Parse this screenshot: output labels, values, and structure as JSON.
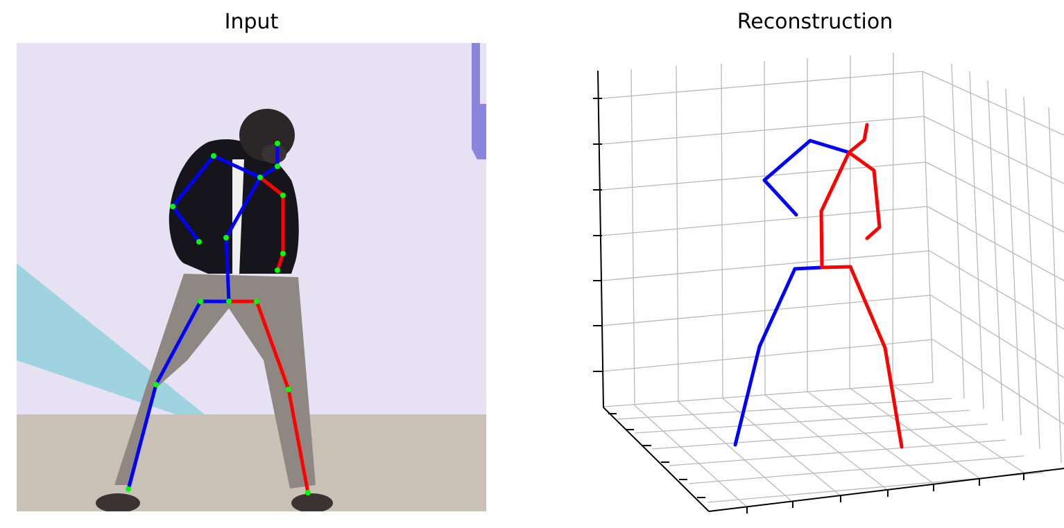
{
  "panels": {
    "input": {
      "title": "Input"
    },
    "reconstruction": {
      "title": "Reconstruction"
    }
  },
  "colors": {
    "left_limb": "#0000ff",
    "right_limb": "#ff0000",
    "keypoint": "#00ff00",
    "grid": "#b8b8b8",
    "background_wall": "#e6e2f4",
    "floor": "#c9c0b6",
    "shirt": "#15151b",
    "pants": "#8f8781"
  },
  "icons": [
    "person-photo",
    "skeleton-overlay",
    "3d-axes"
  ]
}
